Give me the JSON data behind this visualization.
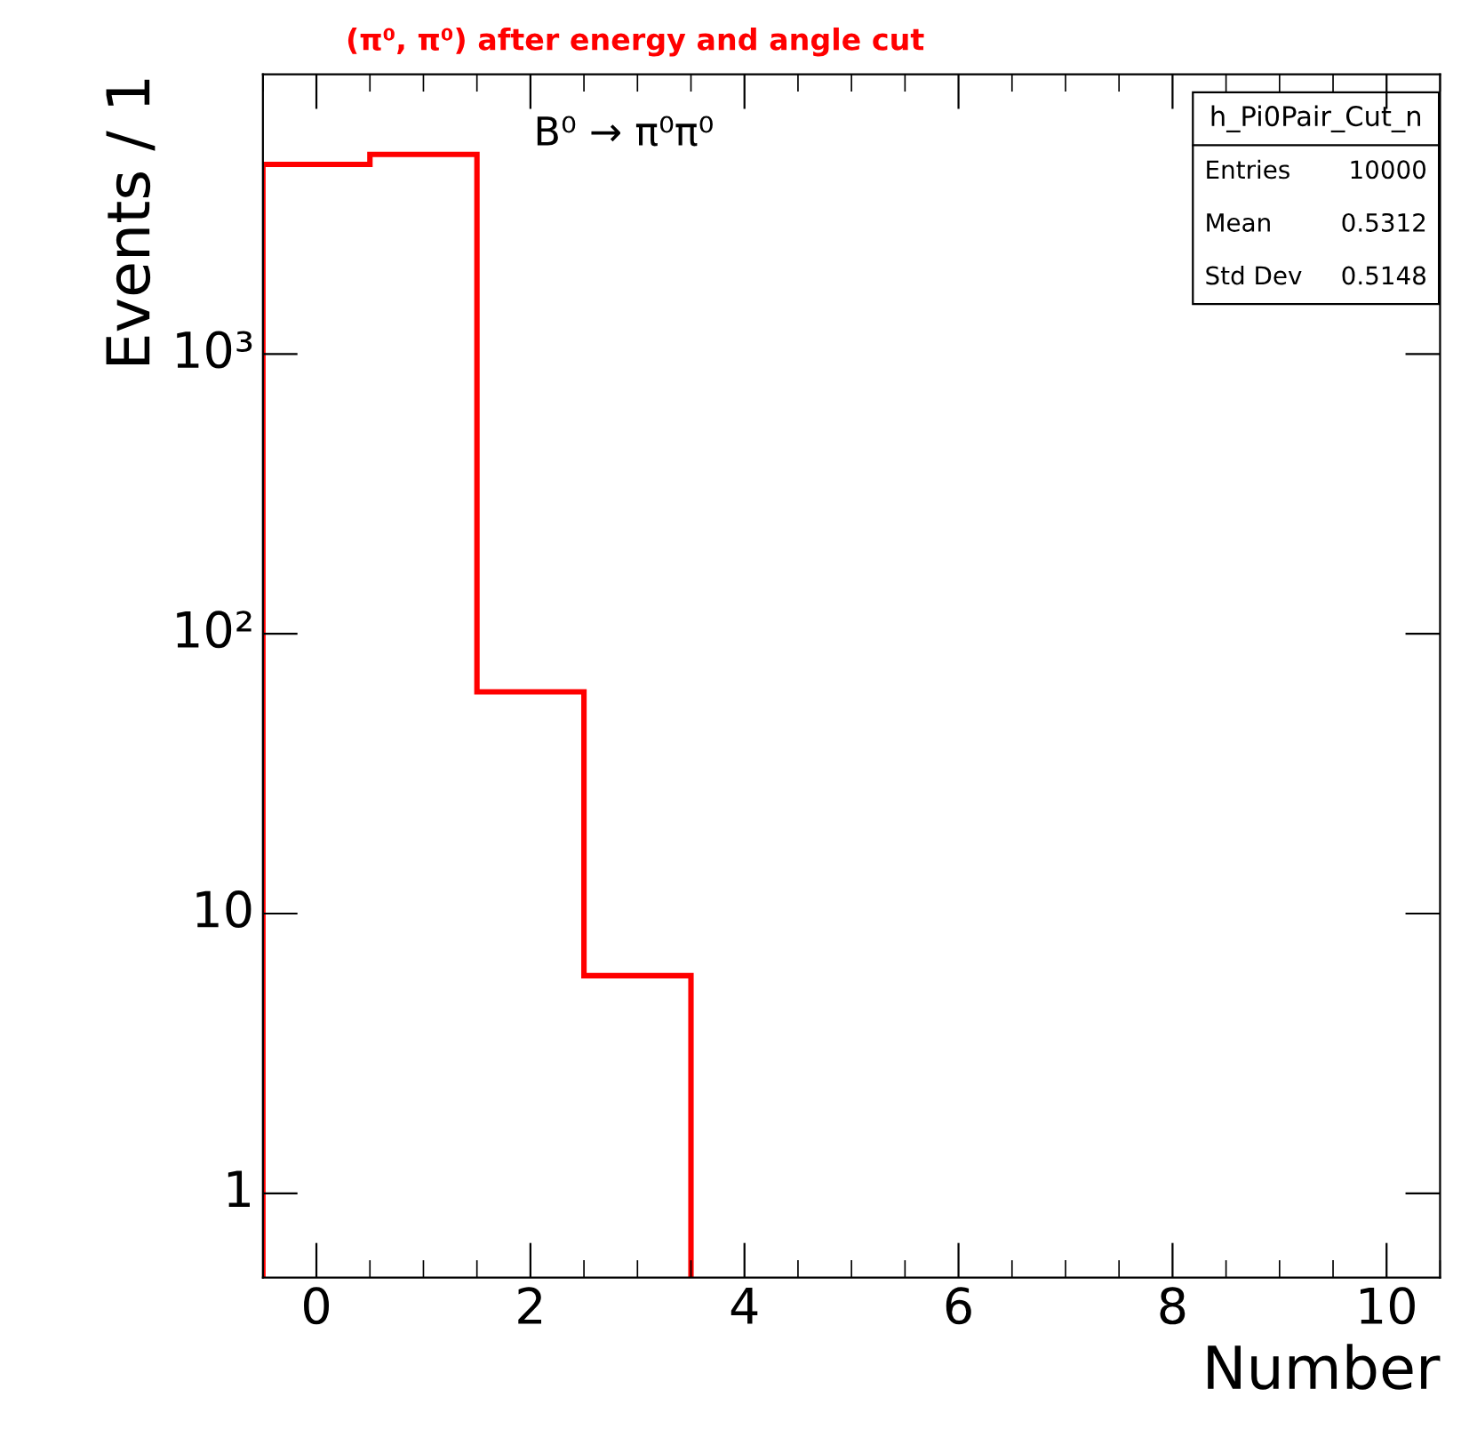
{
  "chart_data": {
    "type": "histogram",
    "title": "(π⁰, π⁰) after energy and angle cut",
    "xlabel": "Number",
    "ylabel": "Events / 1",
    "bins": [
      -0.5,
      0.5,
      1.5,
      2.5,
      3.5
    ],
    "values": [
      4762,
      5170,
      62,
      6
    ],
    "color": "#ff0000",
    "log": "y",
    "grid": false,
    "legend": false,
    "xlim": [
      -0.5,
      10.5
    ],
    "xticks": [
      0,
      2,
      4,
      6,
      8,
      10
    ],
    "ylim": [
      0.5,
      10000
    ],
    "yticks": [
      1,
      10,
      {
        "value": 100,
        "label": "10²"
      },
      {
        "value": 1000,
        "label": "10³"
      }
    ],
    "annotations": [
      "B⁰ → π⁰π⁰",
      "h_Pi0Pair_Cut_n",
      "Entries",
      "10000",
      "Mean",
      "0.5312",
      "Std Dev",
      "0.5148"
    ]
  }
}
